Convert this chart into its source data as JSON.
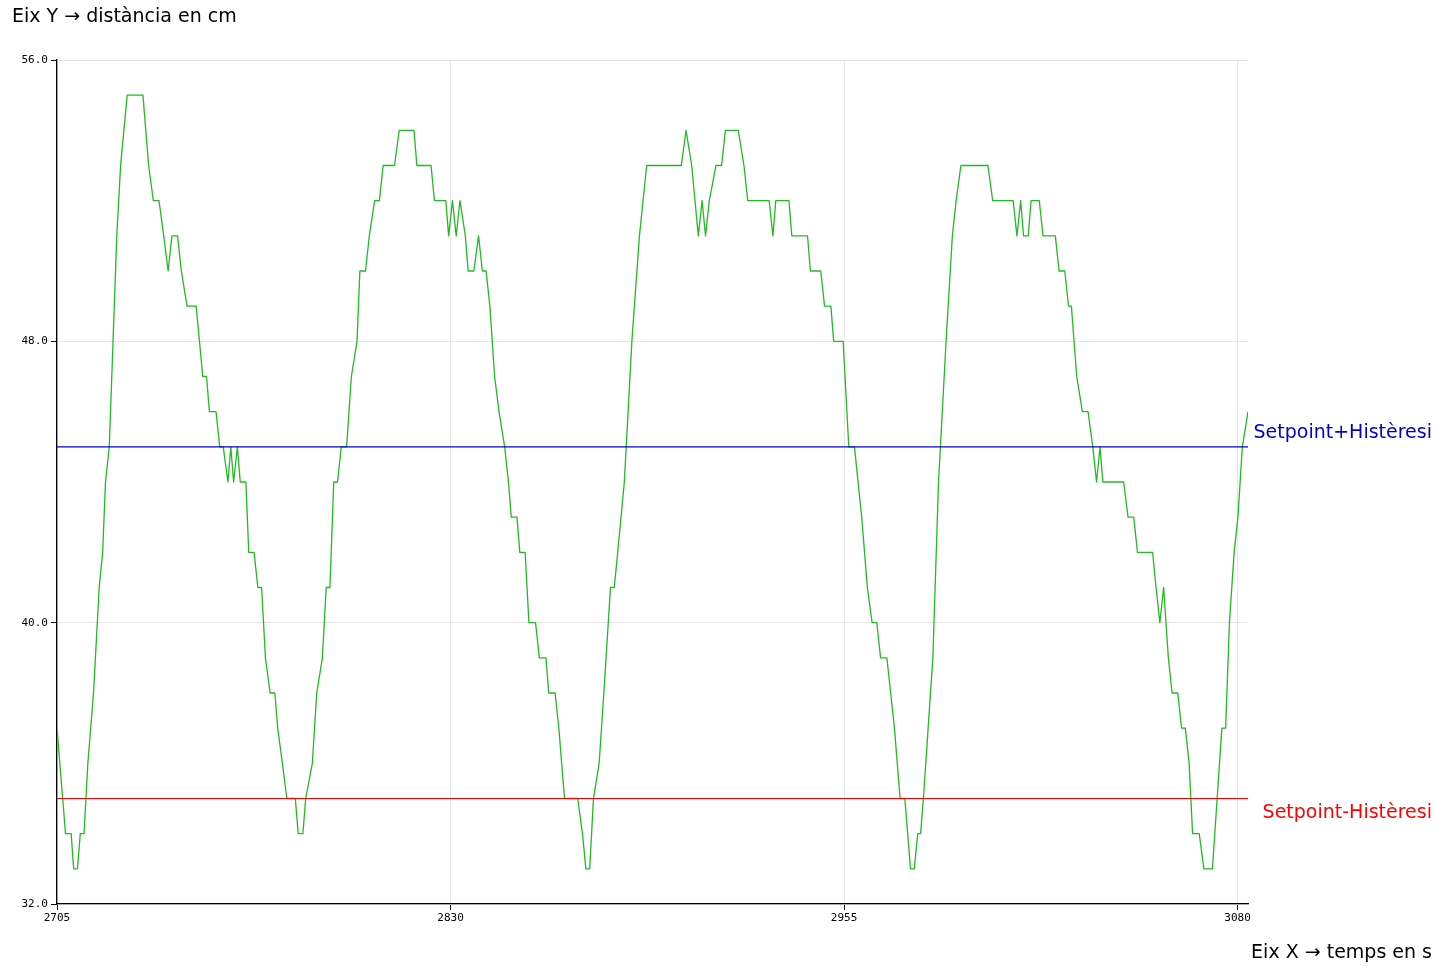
{
  "chart_data": {
    "type": "line",
    "ylabel": "Eix Y → distància en cm",
    "xlabel": "Eix X → temps en s",
    "xlim": [
      2705,
      3083.3
    ],
    "xticks": [
      2705,
      2830,
      2955,
      3080
    ],
    "ylim": [
      32,
      56
    ],
    "yticks": [
      {
        "value": 32,
        "label": "32.0"
      },
      {
        "value": 40,
        "label": "40.0"
      },
      {
        "value": 48,
        "label": "48.0"
      },
      {
        "value": 56,
        "label": "56.0"
      }
    ],
    "grid": true,
    "legend": false,
    "marker": "none",
    "line_style": "solid",
    "ref_lines": [
      {
        "axis": "y",
        "value": 45,
        "label": "Setpoint+Histèresi",
        "color": "#0000cc"
      },
      {
        "axis": "y",
        "value": 35,
        "label": "Setpoint-Histèresi",
        "color": "#ff0000"
      }
    ],
    "series": [
      {
        "color": "#22bb22",
        "x": [
          2705.0,
          2706.8,
          2707.7,
          2709.5,
          2710.3,
          2711.5,
          2712.4,
          2713.6,
          2714.8,
          2716.6,
          2718.4,
          2719.5,
          2720.4,
          2721.6,
          2722.8,
          2724.0,
          2725.2,
          2727.3,
          2732.3,
          2734.1,
          2735.6,
          2737.4,
          2738.9,
          2740.3,
          2741.5,
          2743.3,
          2744.5,
          2746.3,
          2749.2,
          2751.3,
          2752.5,
          2753.4,
          2755.5,
          2756.7,
          2757.8,
          2759.3,
          2760.2,
          2761.1,
          2762.3,
          2763.2,
          2765.0,
          2765.9,
          2767.6,
          2768.8,
          2770.0,
          2771.2,
          2772.7,
          2774.2,
          2775.1,
          2776.6,
          2778.0,
          2780.7,
          2781.6,
          2783.1,
          2784.0,
          2786.1,
          2787.5,
          2789.3,
          2790.5,
          2791.7,
          2792.9,
          2794.1,
          2795.3,
          2797.0,
          2798.5,
          2800.3,
          2801.2,
          2803.0,
          2804.2,
          2805.9,
          2807.4,
          2808.6,
          2812.2,
          2813.7,
          2818.4,
          2819.3,
          2823.8,
          2824.9,
          2828.5,
          2829.4,
          2830.6,
          2831.8,
          2833.0,
          2834.7,
          2835.6,
          2837.4,
          2838.9,
          2840.1,
          2841.3,
          2842.5,
          2844.0,
          2845.4,
          2847.2,
          2848.4,
          2849.3,
          2851.1,
          2852.0,
          2853.7,
          2854.9,
          2857.0,
          2858.2,
          2860.3,
          2861.2,
          2863.2,
          2864.4,
          2866.2,
          2870.4,
          2871.9,
          2873.0,
          2874.2,
          2875.4,
          2877.2,
          2878.7,
          2880.8,
          2882.0,
          2883.1,
          2885.2,
          2887.6,
          2890.0,
          2892.3,
          2903.3,
          2904.8,
          2906.6,
          2908.7,
          2909.9,
          2911.0,
          2912.2,
          2914.3,
          2916.1,
          2917.3,
          2921.4,
          2923.2,
          2924.4,
          2931.2,
          2932.4,
          2933.3,
          2937.5,
          2938.4,
          2943.4,
          2944.3,
          2947.6,
          2948.8,
          2950.8,
          2951.7,
          2954.7,
          2956.5,
          2958.3,
          2960.6,
          2962.4,
          2963.9,
          2965.4,
          2966.6,
          2968.6,
          2969.8,
          2971.0,
          2972.8,
          2974.3,
          2975.2,
          2976.1,
          2977.3,
          2978.4,
          2979.3,
          2980.2,
          2981.7,
          2983.2,
          2985.0,
          2987.4,
          2989.4,
          2990.6,
          2992.1,
          3000.7,
          3002.2,
          3008.7,
          3009.9,
          3011.1,
          3012.0,
          3013.5,
          3014.4,
          3017.0,
          3018.2,
          3022.1,
          3023.3,
          3025.1,
          3026.3,
          3027.2,
          3028.9,
          3030.7,
          3032.5,
          3034.0,
          3035.2,
          3036.3,
          3037.2,
          3043.8,
          3045.2,
          3047.0,
          3048.2,
          3053.0,
          3054.1,
          3055.3,
          3056.5,
          3058.0,
          3059.2,
          3061.0,
          3062.2,
          3063.4,
          3064.6,
          3065.7,
          3067.8,
          3069.3,
          3072.0,
          3073.5,
          3075.0,
          3076.2,
          3077.4,
          3078.9,
          3080.1,
          3081.5,
          3083.3
        ],
        "values": [
          37,
          35,
          34,
          34,
          33,
          33,
          34,
          34,
          36,
          38,
          41,
          42,
          44,
          45,
          48,
          51,
          53,
          55,
          55,
          53,
          52,
          52,
          51,
          50,
          51,
          51,
          50,
          49,
          49,
          47,
          47,
          46,
          46,
          45,
          45,
          44,
          45,
          44,
          45,
          44,
          44,
          42,
          42,
          41,
          41,
          39,
          38,
          38,
          37,
          36,
          35,
          35,
          34,
          34,
          35,
          36,
          38,
          39,
          41,
          41,
          44,
          44,
          45,
          45,
          47,
          48,
          50,
          50,
          51,
          52,
          52,
          53,
          53,
          54,
          54,
          53,
          53,
          52,
          52,
          51,
          52,
          51,
          52,
          51,
          50,
          50,
          51,
          50,
          50,
          49,
          47,
          46,
          45,
          44,
          43,
          43,
          42,
          42,
          40,
          40,
          39,
          39,
          38,
          38,
          37,
          35,
          35,
          34,
          33,
          33,
          35,
          36,
          38,
          41,
          41,
          42,
          44,
          48,
          51,
          53,
          53,
          54,
          53,
          51,
          52,
          51,
          52,
          53,
          53,
          54,
          54,
          53,
          52,
          52,
          51,
          52,
          52,
          51,
          51,
          50,
          50,
          49,
          49,
          48,
          48,
          45,
          45,
          43,
          41,
          40,
          40,
          39,
          39,
          38,
          37,
          35,
          35,
          34,
          33,
          33,
          34,
          34,
          35,
          37,
          39,
          44,
          48,
          51,
          52,
          53,
          53,
          52,
          52,
          51,
          52,
          51,
          51,
          52,
          52,
          51,
          51,
          50,
          50,
          49,
          49,
          47,
          46,
          46,
          45,
          44,
          45,
          44,
          44,
          43,
          43,
          42,
          42,
          41,
          40,
          41,
          39,
          38,
          38,
          37,
          37,
          36,
          34,
          34,
          33,
          33,
          35,
          37,
          37,
          40,
          42,
          43,
          45,
          46
        ]
      }
    ]
  }
}
